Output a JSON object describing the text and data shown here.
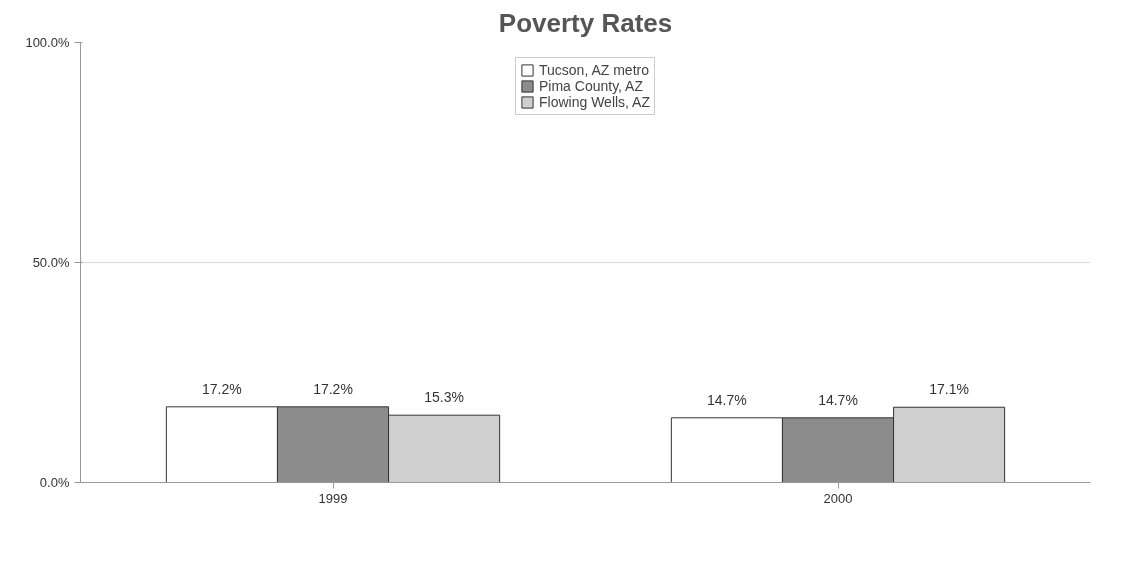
{
  "chart_data": {
    "type": "bar",
    "title": "Poverty Rates",
    "categories": [
      "1999",
      "2000"
    ],
    "series": [
      {
        "name": "Tucson, AZ metro",
        "color": "#ffffff",
        "values": [
          17.2,
          14.7
        ],
        "value_labels": [
          "17.2%",
          "14.7%"
        ]
      },
      {
        "name": "Pima County, AZ",
        "color": "#8c8c8c",
        "values": [
          17.2,
          14.7
        ],
        "value_labels": [
          "17.2%",
          "14.7%"
        ]
      },
      {
        "name": "Flowing Wells, AZ",
        "color": "#cfcfcf",
        "values": [
          15.3,
          17.1
        ],
        "value_labels": [
          "15.3%",
          "17.1%"
        ]
      }
    ],
    "ylim": [
      0,
      100
    ],
    "yticks": [
      {
        "value": 0,
        "label": "0.0%"
      },
      {
        "value": 50,
        "label": "50.0%"
      },
      {
        "value": 100,
        "label": "100.0%"
      }
    ],
    "grid": "y",
    "legend": "top"
  }
}
